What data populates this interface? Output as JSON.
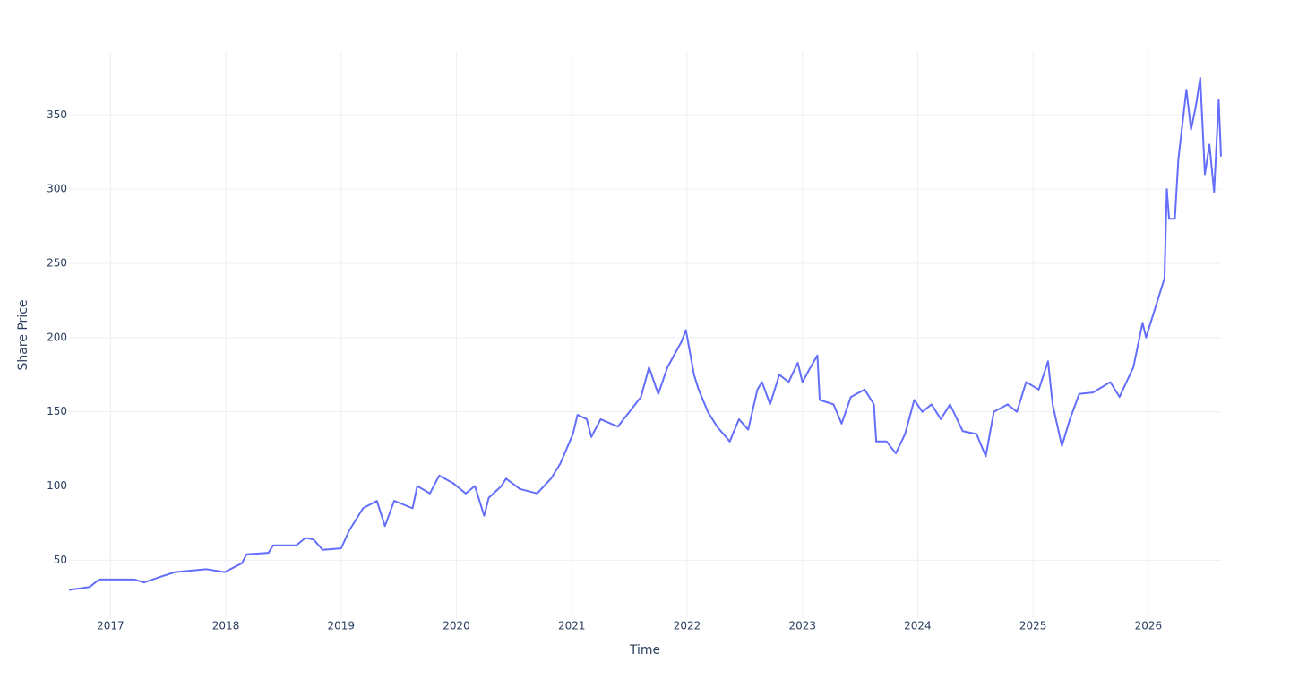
{
  "chart_data": {
    "type": "line",
    "x_label": "Time",
    "y_label": "Share Price",
    "color": "#636efa",
    "grid": true,
    "xlim": [
      2016.64,
      2026.63
    ],
    "ylim": [
      11,
      393
    ],
    "xticks": [
      2017,
      2018,
      2019,
      2020,
      2021,
      2022,
      2023,
      2024,
      2025,
      2026
    ],
    "yticks": [
      50,
      100,
      150,
      200,
      250,
      300,
      350
    ],
    "x": [
      2016.64,
      2016.82,
      2016.9,
      2017.21,
      2017.29,
      2017.44,
      2017.56,
      2017.83,
      2017.99,
      2018.14,
      2018.18,
      2018.37,
      2018.41,
      2018.61,
      2018.69,
      2018.76,
      2018.84,
      2019.0,
      2019.07,
      2019.19,
      2019.31,
      2019.38,
      2019.46,
      2019.62,
      2019.66,
      2019.77,
      2019.85,
      2019.97,
      2020.08,
      2020.16,
      2020.24,
      2020.28,
      2020.39,
      2020.43,
      2020.55,
      2020.7,
      2020.82,
      2020.9,
      2021.01,
      2021.05,
      2021.13,
      2021.17,
      2021.25,
      2021.4,
      2021.52,
      2021.6,
      2021.67,
      2021.75,
      2021.83,
      2021.95,
      2021.99,
      2022.06,
      2022.1,
      2022.18,
      2022.26,
      2022.37,
      2022.45,
      2022.53,
      2022.61,
      2022.65,
      2022.72,
      2022.8,
      2022.88,
      2022.96,
      2023.0,
      2023.07,
      2023.13,
      2023.15,
      2023.27,
      2023.34,
      2023.42,
      2023.54,
      2023.62,
      2023.64,
      2023.73,
      2023.81,
      2023.89,
      2023.97,
      2024.04,
      2024.12,
      2024.2,
      2024.28,
      2024.39,
      2024.51,
      2024.59,
      2024.66,
      2024.78,
      2024.86,
      2024.94,
      2025.05,
      2025.13,
      2025.17,
      2025.25,
      2025.32,
      2025.4,
      2025.52,
      2025.67,
      2025.75,
      2025.87,
      2025.95,
      2025.98,
      2026.06,
      2026.14,
      2026.16,
      2026.18,
      2026.23,
      2026.26,
      2026.33,
      2026.37,
      2026.41,
      2026.45,
      2026.49,
      2026.53,
      2026.57,
      2026.61,
      2026.63
    ],
    "values": [
      30,
      32,
      37,
      37,
      35,
      39,
      42,
      44,
      42,
      48,
      54,
      55,
      60,
      60,
      65,
      64,
      57,
      58,
      70,
      85,
      90,
      73,
      90,
      85,
      100,
      95,
      107,
      102,
      95,
      100,
      80,
      92,
      100,
      105,
      98,
      95,
      105,
      115,
      135,
      148,
      145,
      133,
      145,
      140,
      152,
      160,
      180,
      162,
      180,
      197,
      205,
      175,
      165,
      150,
      140,
      130,
      145,
      138,
      165,
      170,
      155,
      175,
      170,
      183,
      170,
      180,
      188,
      158,
      155,
      142,
      160,
      165,
      155,
      130,
      130,
      122,
      135,
      158,
      150,
      155,
      145,
      155,
      137,
      135,
      120,
      150,
      155,
      150,
      170,
      165,
      184,
      155,
      127,
      145,
      162,
      163,
      170,
      160,
      180,
      210,
      200,
      220,
      240,
      300,
      280,
      280,
      320,
      367,
      340,
      355,
      375,
      310,
      330,
      298,
      360,
      322
    ]
  }
}
